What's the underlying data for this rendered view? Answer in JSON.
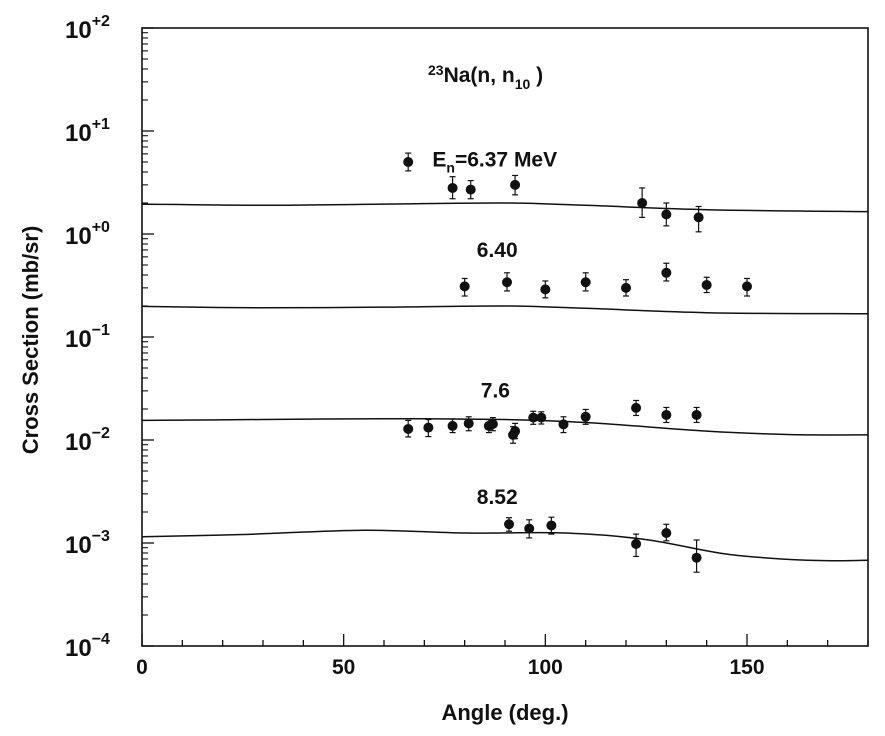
{
  "chart_data": {
    "type": "scatter",
    "title_parts": {
      "mass_number": "23",
      "symbol": "Na(n, n",
      "level_subscript": "10",
      "close": " )"
    },
    "xlabel": "Angle  (deg.)",
    "ylabel": "Cross  Section  (mb/sr)",
    "xlim": [
      0,
      180
    ],
    "ylim": [
      0.0001,
      100
    ],
    "yscale": "log",
    "x_ticks": [
      {
        "value": 0,
        "label": "0"
      },
      {
        "value": 50,
        "label": "50"
      },
      {
        "value": 100,
        "label": "100"
      },
      {
        "value": 150,
        "label": "150"
      }
    ],
    "y_ticks": [
      {
        "value": 100,
        "base": "10",
        "exp": "+2"
      },
      {
        "value": 10,
        "base": "10",
        "exp": "+1"
      },
      {
        "value": 1,
        "base": "10",
        "exp": "+0"
      },
      {
        "value": 0.1,
        "base": "10",
        "exp": "−1"
      },
      {
        "value": 0.01,
        "base": "10",
        "exp": "−2"
      },
      {
        "value": 0.001,
        "base": "10",
        "exp": "−3"
      },
      {
        "value": 0.0001,
        "base": "10",
        "exp": "−4"
      }
    ],
    "series": [
      {
        "name": "6.37 MeV",
        "label": {
          "prefix": "E",
          "sub": "n",
          "text": "=6.37  MeV",
          "anchor_x": 72,
          "anchor_y": 4.5
        },
        "points": [
          {
            "x": 66,
            "y": 5.0,
            "lo": 4.1,
            "hi": 6.1
          },
          {
            "x": 77,
            "y": 2.8,
            "lo": 2.2,
            "hi": 3.6
          },
          {
            "x": 81.5,
            "y": 2.7,
            "lo": 2.2,
            "hi": 3.3
          },
          {
            "x": 92.5,
            "y": 3.0,
            "lo": 2.4,
            "hi": 3.7
          },
          {
            "x": 124,
            "y": 2.0,
            "lo": 1.45,
            "hi": 2.8
          },
          {
            "x": 130,
            "y": 1.55,
            "lo": 1.2,
            "hi": 2.0
          },
          {
            "x": 138,
            "y": 1.45,
            "lo": 1.05,
            "hi": 1.85
          }
        ],
        "curve": [
          {
            "x": 0,
            "y": 1.95
          },
          {
            "x": 30,
            "y": 1.9
          },
          {
            "x": 60,
            "y": 1.95
          },
          {
            "x": 90,
            "y": 2.0
          },
          {
            "x": 110,
            "y": 1.9
          },
          {
            "x": 140,
            "y": 1.72
          },
          {
            "x": 180,
            "y": 1.65
          }
        ]
      },
      {
        "name": "6.40",
        "label": {
          "text": "6.40",
          "anchor_x": 83,
          "anchor_y": 0.6
        },
        "points": [
          {
            "x": 80,
            "y": 0.31,
            "lo": 0.25,
            "hi": 0.37
          },
          {
            "x": 90.5,
            "y": 0.34,
            "lo": 0.28,
            "hi": 0.42
          },
          {
            "x": 100,
            "y": 0.29,
            "lo": 0.24,
            "hi": 0.35
          },
          {
            "x": 110,
            "y": 0.34,
            "lo": 0.28,
            "hi": 0.42
          },
          {
            "x": 120,
            "y": 0.3,
            "lo": 0.25,
            "hi": 0.36
          },
          {
            "x": 130,
            "y": 0.42,
            "lo": 0.35,
            "hi": 0.52
          },
          {
            "x": 140,
            "y": 0.32,
            "lo": 0.27,
            "hi": 0.38
          },
          {
            "x": 150,
            "y": 0.31,
            "lo": 0.25,
            "hi": 0.37
          }
        ],
        "curve": [
          {
            "x": 0,
            "y": 0.198
          },
          {
            "x": 30,
            "y": 0.192
          },
          {
            "x": 60,
            "y": 0.195
          },
          {
            "x": 90,
            "y": 0.2
          },
          {
            "x": 110,
            "y": 0.19
          },
          {
            "x": 140,
            "y": 0.172
          },
          {
            "x": 180,
            "y": 0.168
          }
        ]
      },
      {
        "name": "7.6",
        "label": {
          "text": "7.6",
          "anchor_x": 84,
          "anchor_y": 0.026
        },
        "points": [
          {
            "x": 66,
            "y": 0.0128,
            "lo": 0.0107,
            "hi": 0.0155
          },
          {
            "x": 71,
            "y": 0.0132,
            "lo": 0.0108,
            "hi": 0.0158
          },
          {
            "x": 77,
            "y": 0.0137,
            "lo": 0.0118,
            "hi": 0.016
          },
          {
            "x": 81,
            "y": 0.0145,
            "lo": 0.0123,
            "hi": 0.0168
          },
          {
            "x": 86,
            "y": 0.0137,
            "lo": 0.0118,
            "hi": 0.0158
          },
          {
            "x": 87,
            "y": 0.0143,
            "lo": 0.0123,
            "hi": 0.0165
          },
          {
            "x": 92,
            "y": 0.0112,
            "lo": 0.0093,
            "hi": 0.0135
          },
          {
            "x": 92.5,
            "y": 0.0122,
            "lo": 0.0103,
            "hi": 0.0145
          },
          {
            "x": 97,
            "y": 0.0165,
            "lo": 0.0142,
            "hi": 0.019
          },
          {
            "x": 99,
            "y": 0.0165,
            "lo": 0.0143,
            "hi": 0.0188
          },
          {
            "x": 104.5,
            "y": 0.0142,
            "lo": 0.0118,
            "hi": 0.0168
          },
          {
            "x": 110,
            "y": 0.0168,
            "lo": 0.0142,
            "hi": 0.0198
          },
          {
            "x": 122.5,
            "y": 0.0205,
            "lo": 0.0173,
            "hi": 0.0242
          },
          {
            "x": 130,
            "y": 0.0175,
            "lo": 0.0148,
            "hi": 0.0207
          },
          {
            "x": 137.5,
            "y": 0.0175,
            "lo": 0.0148,
            "hi": 0.0207
          }
        ],
        "curve": [
          {
            "x": 0,
            "y": 0.0155
          },
          {
            "x": 30,
            "y": 0.0158
          },
          {
            "x": 60,
            "y": 0.0161
          },
          {
            "x": 90,
            "y": 0.0158
          },
          {
            "x": 110,
            "y": 0.0148
          },
          {
            "x": 140,
            "y": 0.0122
          },
          {
            "x": 160,
            "y": 0.0113
          },
          {
            "x": 180,
            "y": 0.0112
          }
        ]
      },
      {
        "name": "8.52",
        "label": {
          "text": "8.52",
          "anchor_x": 83,
          "anchor_y": 0.0024
        },
        "points": [
          {
            "x": 91,
            "y": 0.00152,
            "lo": 0.0013,
            "hi": 0.00176
          },
          {
            "x": 96,
            "y": 0.00138,
            "lo": 0.00112,
            "hi": 0.00168
          },
          {
            "x": 101.5,
            "y": 0.00148,
            "lo": 0.00122,
            "hi": 0.00178
          },
          {
            "x": 122.5,
            "y": 0.00098,
            "lo": 0.00074,
            "hi": 0.00122
          },
          {
            "x": 130,
            "y": 0.00125,
            "lo": 0.00105,
            "hi": 0.00152
          },
          {
            "x": 137.5,
            "y": 0.00072,
            "lo": 0.00052,
            "hi": 0.00107
          }
        ],
        "curve": [
          {
            "x": 0,
            "y": 0.00115
          },
          {
            "x": 25,
            "y": 0.00121
          },
          {
            "x": 55,
            "y": 0.00133
          },
          {
            "x": 80,
            "y": 0.00125
          },
          {
            "x": 105,
            "y": 0.00125
          },
          {
            "x": 125,
            "y": 0.00108
          },
          {
            "x": 145,
            "y": 0.00078
          },
          {
            "x": 165,
            "y": 0.00068
          },
          {
            "x": 180,
            "y": 0.00068
          }
        ]
      }
    ]
  }
}
